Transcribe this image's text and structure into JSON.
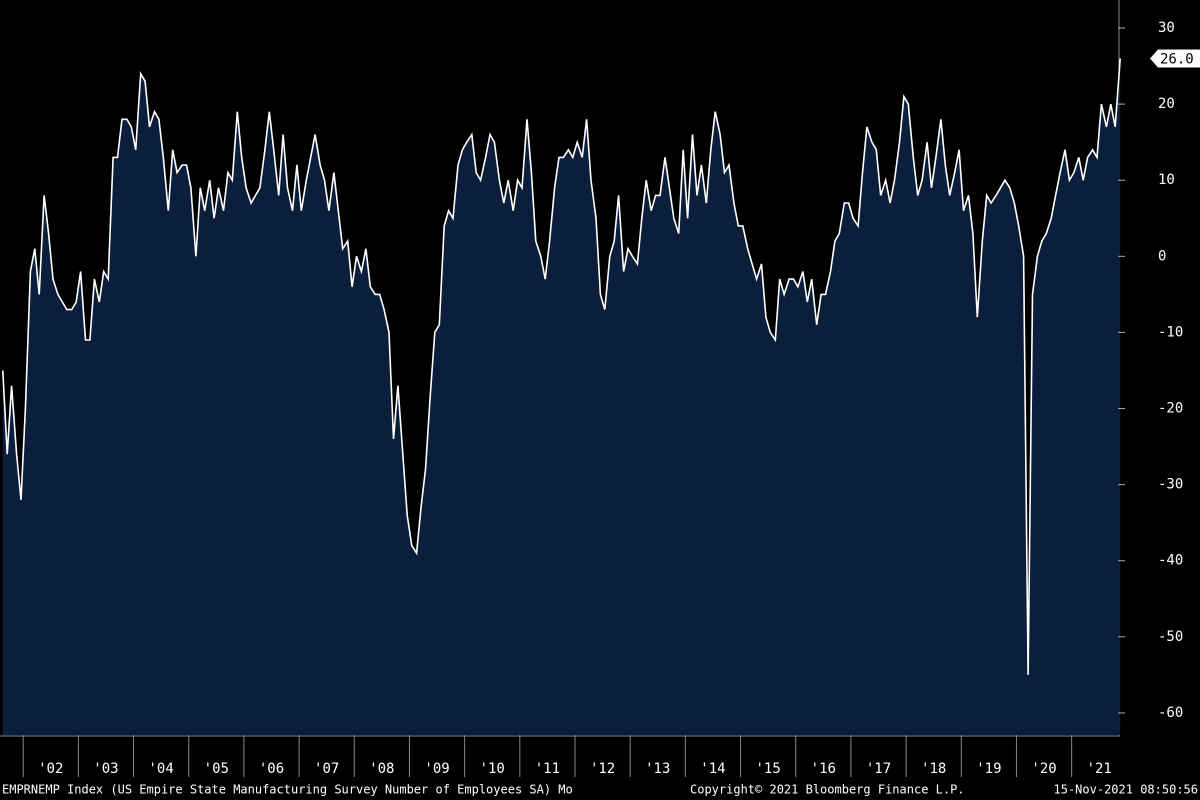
{
  "chart_data": {
    "type": "area",
    "x": [
      2001.63,
      2001.71,
      2001.79,
      2001.88,
      2001.96,
      2002.04,
      2002.13,
      2002.21,
      2002.29,
      2002.38,
      2002.46,
      2002.54,
      2002.63,
      2002.71,
      2002.79,
      2002.88,
      2002.96,
      2003.04,
      2003.13,
      2003.21,
      2003.29,
      2003.38,
      2003.46,
      2003.54,
      2003.63,
      2003.71,
      2003.79,
      2003.88,
      2003.96,
      2004.04,
      2004.13,
      2004.21,
      2004.29,
      2004.38,
      2004.46,
      2004.54,
      2004.63,
      2004.71,
      2004.79,
      2004.88,
      2004.96,
      2005.04,
      2005.13,
      2005.21,
      2005.29,
      2005.38,
      2005.46,
      2005.54,
      2005.63,
      2005.71,
      2005.79,
      2005.88,
      2005.96,
      2006.04,
      2006.13,
      2006.21,
      2006.29,
      2006.38,
      2006.46,
      2006.54,
      2006.63,
      2006.71,
      2006.79,
      2006.88,
      2006.96,
      2007.04,
      2007.13,
      2007.21,
      2007.29,
      2007.38,
      2007.46,
      2007.54,
      2007.63,
      2007.71,
      2007.79,
      2007.88,
      2007.96,
      2008.04,
      2008.13,
      2008.21,
      2008.29,
      2008.38,
      2008.46,
      2008.54,
      2008.63,
      2008.71,
      2008.79,
      2008.88,
      2008.96,
      2009.04,
      2009.13,
      2009.21,
      2009.29,
      2009.38,
      2009.46,
      2009.54,
      2009.63,
      2009.71,
      2009.79,
      2009.88,
      2009.96,
      2010.04,
      2010.13,
      2010.21,
      2010.29,
      2010.38,
      2010.46,
      2010.54,
      2010.63,
      2010.71,
      2010.79,
      2010.88,
      2010.96,
      2011.04,
      2011.13,
      2011.21,
      2011.29,
      2011.38,
      2011.46,
      2011.54,
      2011.63,
      2011.71,
      2011.79,
      2011.88,
      2011.96,
      2012.04,
      2012.13,
      2012.21,
      2012.29,
      2012.38,
      2012.46,
      2012.54,
      2012.63,
      2012.71,
      2012.79,
      2012.88,
      2012.96,
      2013.04,
      2013.13,
      2013.21,
      2013.29,
      2013.38,
      2013.46,
      2013.54,
      2013.63,
      2013.71,
      2013.79,
      2013.88,
      2013.96,
      2014.04,
      2014.13,
      2014.21,
      2014.29,
      2014.38,
      2014.46,
      2014.54,
      2014.63,
      2014.71,
      2014.79,
      2014.88,
      2014.96,
      2015.04,
      2015.13,
      2015.21,
      2015.29,
      2015.38,
      2015.46,
      2015.54,
      2015.63,
      2015.71,
      2015.79,
      2015.88,
      2015.96,
      2016.04,
      2016.13,
      2016.21,
      2016.29,
      2016.38,
      2016.46,
      2016.54,
      2016.63,
      2016.71,
      2016.79,
      2016.88,
      2016.96,
      2017.04,
      2017.13,
      2017.21,
      2017.29,
      2017.38,
      2017.46,
      2017.54,
      2017.63,
      2017.71,
      2017.79,
      2017.88,
      2017.96,
      2018.04,
      2018.13,
      2018.21,
      2018.29,
      2018.38,
      2018.46,
      2018.54,
      2018.63,
      2018.71,
      2018.79,
      2018.88,
      2018.96,
      2019.04,
      2019.13,
      2019.21,
      2019.29,
      2019.38,
      2019.46,
      2019.54,
      2019.63,
      2019.71,
      2019.79,
      2019.88,
      2019.96,
      2020.04,
      2020.13,
      2020.21,
      2020.29,
      2020.38,
      2020.46,
      2020.54,
      2020.63,
      2020.71,
      2020.79,
      2020.88,
      2020.96,
      2021.04,
      2021.13,
      2021.21,
      2021.29,
      2021.38,
      2021.46,
      2021.54,
      2021.63,
      2021.71,
      2021.79,
      2021.88
    ],
    "series": [
      {
        "color": "#ffffff",
        "fill": "#0b1f3c",
        "values": [
          -15,
          -26,
          -17,
          -26,
          -32,
          -20,
          -2,
          1,
          -5,
          8,
          3,
          -3,
          -5,
          -6,
          -7,
          -7,
          -6,
          -2,
          -11,
          -11,
          -3,
          -6,
          -2,
          -3,
          13,
          13,
          18,
          18,
          17,
          14,
          24,
          23,
          17,
          19,
          18,
          13,
          6,
          14,
          11,
          12,
          12,
          9,
          0,
          9,
          6,
          10,
          5,
          9,
          6,
          11,
          10,
          19,
          13,
          9,
          7,
          8,
          9,
          14,
          19,
          14,
          8,
          16,
          9,
          6,
          12,
          6,
          10,
          13,
          16,
          12,
          10,
          6,
          11,
          6,
          1,
          2,
          -4,
          0,
          -2,
          1,
          -4,
          -5,
          -5,
          -7,
          -10,
          -24,
          -17,
          -26,
          -34,
          -38,
          -39,
          -33,
          -28,
          -18,
          -10,
          -9,
          4,
          6,
          5,
          12,
          14,
          15,
          16,
          11,
          10,
          13,
          16,
          15,
          10,
          7,
          10,
          6,
          10,
          9,
          18,
          11,
          2,
          0,
          -3,
          2,
          9,
          13,
          13,
          14,
          13,
          15,
          13,
          18,
          10,
          5,
          -5,
          -7,
          0,
          2,
          8,
          -2,
          1,
          0,
          -1,
          5,
          10,
          6,
          8,
          8,
          13,
          9,
          5,
          3,
          14,
          5,
          16,
          8,
          12,
          7,
          14,
          19,
          16,
          11,
          12,
          7,
          4,
          4,
          1,
          -1,
          -3,
          -1,
          -8,
          -10,
          -11,
          -3,
          -5,
          -3,
          -3,
          -4,
          -2,
          -6,
          -3,
          -9,
          -5,
          -5,
          -2,
          2,
          3,
          7,
          7,
          5,
          4,
          11,
          17,
          15,
          14,
          8,
          10,
          7,
          10,
          15,
          21,
          20,
          13,
          8,
          10,
          15,
          9,
          13,
          18,
          12,
          8,
          11,
          14,
          6,
          8,
          3,
          -8,
          2,
          8,
          7,
          8,
          9,
          10,
          9,
          7,
          4,
          0,
          -55,
          -5,
          0,
          2,
          3,
          5,
          8,
          11,
          14,
          10,
          11,
          13,
          10,
          13,
          14,
          13,
          20,
          17,
          20,
          17,
          26
        ]
      }
    ],
    "last_value": {
      "value": 26,
      "label": "26.0"
    },
    "xlim": [
      2001.58,
      2021.84
    ],
    "xticks": [
      {
        "value": 2002,
        "label": "'02"
      },
      {
        "value": 2003,
        "label": "'03"
      },
      {
        "value": 2004,
        "label": "'04"
      },
      {
        "value": 2005,
        "label": "'05"
      },
      {
        "value": 2006,
        "label": "'06"
      },
      {
        "value": 2007,
        "label": "'07"
      },
      {
        "value": 2008,
        "label": "'08"
      },
      {
        "value": 2009,
        "label": "'09"
      },
      {
        "value": 2010,
        "label": "'10"
      },
      {
        "value": 2011,
        "label": "'11"
      },
      {
        "value": 2012,
        "label": "'12"
      },
      {
        "value": 2013,
        "label": "'13"
      },
      {
        "value": 2014,
        "label": "'14"
      },
      {
        "value": 2015,
        "label": "'15"
      },
      {
        "value": 2016,
        "label": "'16"
      },
      {
        "value": 2017,
        "label": "'17"
      },
      {
        "value": 2018,
        "label": "'18"
      },
      {
        "value": 2019,
        "label": "'19"
      },
      {
        "value": 2020,
        "label": "'20"
      },
      {
        "value": 2021,
        "label": "'21"
      }
    ],
    "ylim": [
      -62.9,
      33.68
    ],
    "yticks": [
      30,
      20,
      10,
      0,
      -10,
      -20,
      -30,
      -40,
      -50,
      -60
    ],
    "footer_left": "EMPRNEMP Index (US Empire State Manufacturing Survey Number of Employees SA) Mo",
    "footer_center": "Copyright© 2021 Bloomberg Finance L.P.",
    "footer_right": "15-Nov-2021 08:50:56"
  }
}
